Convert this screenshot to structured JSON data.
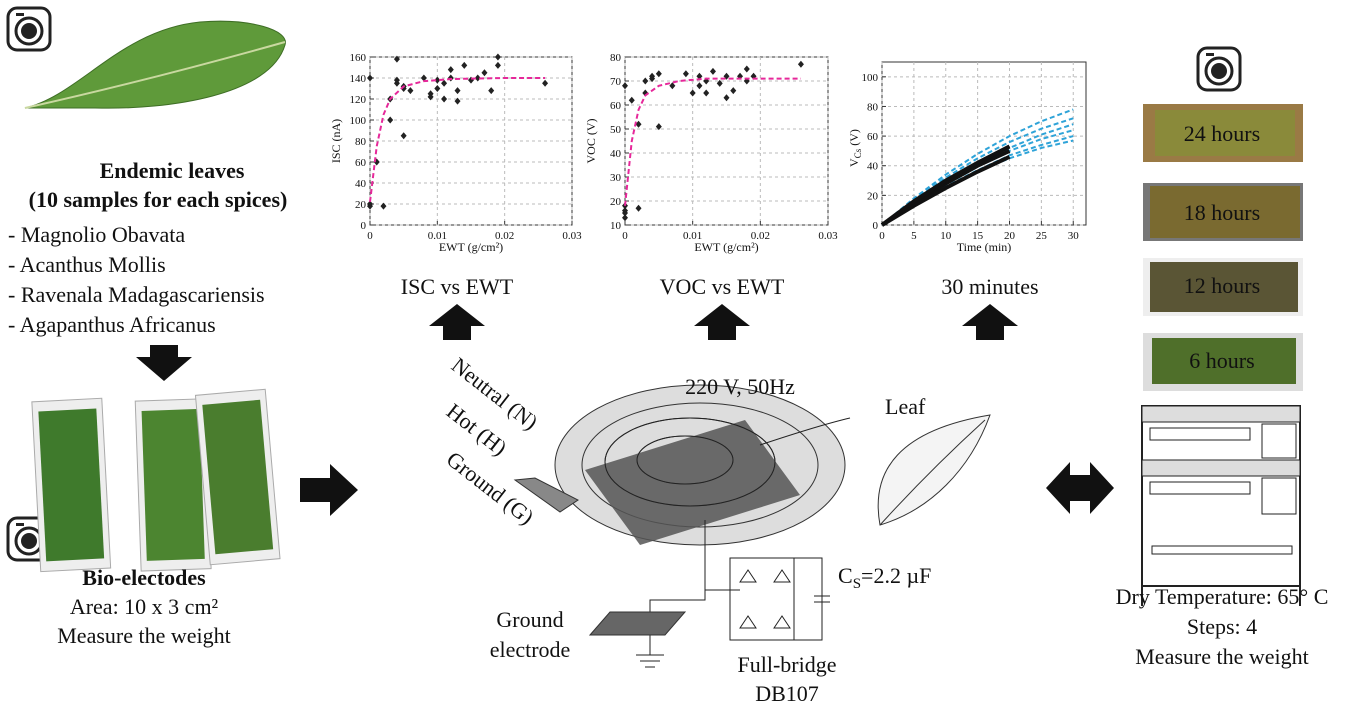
{
  "left": {
    "title": "Endemic leaves",
    "subtitle": "(10 samples for each spices)",
    "species": [
      "- Magnolio Obavata",
      "- Acanthus Mollis",
      "- Ravenala Madagascariensis",
      "- Agapanthus Africanus"
    ],
    "electrode_title": "Bio-electodes",
    "area": "Area: 10 x 3 cm²",
    "weight": "Measure the weight"
  },
  "center": {
    "captions": [
      "ISC vs EWT",
      "VOC vs EWT",
      "30 minutes"
    ],
    "supply": "220 V, 50Hz",
    "neutral": "Neutral (N)",
    "hot": "Hot (H)",
    "ground": "Ground (G)",
    "leaf": "Leaf",
    "ground_electrode": [
      "Ground",
      "electrode"
    ],
    "bridge": [
      "Full-bridge",
      "DB107"
    ],
    "capacitor": {
      "main": "C",
      "sub": "S",
      "rest": "=2.2 µF"
    }
  },
  "right": {
    "photos": [
      "24 hours",
      "18 hours",
      "12 hours",
      "6 hours"
    ],
    "temperature": "Dry Temperature: 65° C",
    "steps": "Steps: 4",
    "weight": "Measure the weight"
  },
  "chart_data": [
    {
      "type": "scatter",
      "xlabel": "EWT (g/cm²)",
      "ylabel": "ISC (nA)",
      "xlim": [
        0,
        0.03
      ],
      "xticks": [
        0,
        0.01,
        0.02,
        0.03
      ],
      "ylim": [
        0,
        160
      ],
      "yticks": [
        0,
        20,
        40,
        60,
        80,
        100,
        120,
        140,
        160
      ],
      "grid": true,
      "series": [
        {
          "style": "scatter",
          "color": "#222222",
          "x": [
            0,
            0,
            0,
            0.001,
            0.002,
            0.003,
            0.003,
            0.004,
            0.004,
            0.004,
            0.005,
            0.005,
            0.005,
            0.006,
            0.008,
            0.009,
            0.009,
            0.01,
            0.01,
            0.011,
            0.011,
            0.012,
            0.012,
            0.013,
            0.013,
            0.014,
            0.015,
            0.016,
            0.017,
            0.018,
            0.019,
            0.019,
            0.026
          ],
          "values": [
            140,
            20,
            18,
            60,
            18,
            100,
            120,
            158,
            135,
            138,
            130,
            132,
            85,
            128,
            140,
            125,
            122,
            130,
            138,
            120,
            135,
            140,
            148,
            118,
            128,
            152,
            138,
            140,
            145,
            128,
            160,
            152,
            135
          ]
        },
        {
          "style": "line",
          "dash": true,
          "color": "#e6289a",
          "x": [
            0,
            0.001,
            0.002,
            0.003,
            0.005,
            0.008,
            0.012,
            0.02,
            0.026
          ],
          "values": [
            22,
            75,
            105,
            120,
            132,
            137,
            139,
            140,
            140
          ]
        }
      ]
    },
    {
      "type": "scatter",
      "xlabel": "EWT (g/cm²)",
      "ylabel": "VOC (V)",
      "xlim": [
        0,
        0.03
      ],
      "xticks": [
        0,
        0.01,
        0.02,
        0.03
      ],
      "ylim": [
        10,
        80
      ],
      "yticks": [
        10,
        20,
        30,
        40,
        50,
        60,
        70,
        80
      ],
      "grid": true,
      "series": [
        {
          "style": "scatter",
          "color": "#222222",
          "x": [
            0,
            0,
            0,
            0,
            0,
            0.001,
            0.002,
            0.002,
            0.003,
            0.003,
            0.004,
            0.004,
            0.005,
            0.005,
            0.007,
            0.009,
            0.01,
            0.011,
            0.011,
            0.012,
            0.012,
            0.013,
            0.014,
            0.015,
            0.015,
            0.016,
            0.017,
            0.018,
            0.018,
            0.019,
            0.026
          ],
          "values": [
            68,
            15,
            13,
            16,
            18,
            62,
            52,
            17,
            70,
            65,
            71,
            72,
            73,
            51,
            68,
            73,
            65,
            72,
            68,
            65,
            70,
            74,
            69,
            63,
            72,
            66,
            72,
            70,
            75,
            72,
            77
          ]
        },
        {
          "style": "line",
          "dash": true,
          "color": "#e6289a",
          "x": [
            0,
            0.001,
            0.002,
            0.003,
            0.005,
            0.008,
            0.012,
            0.02,
            0.026
          ],
          "values": [
            18,
            45,
            58,
            64,
            68,
            70,
            71,
            71,
            71
          ]
        }
      ]
    },
    {
      "type": "line",
      "xlabel": "Time (min)",
      "ylabel": {
        "main": "V",
        "sub": "Cs",
        "unit": " (V)"
      },
      "xlim": [
        0,
        32
      ],
      "xticks": [
        0,
        5,
        10,
        15,
        20,
        25,
        30
      ],
      "ylim": [
        0,
        110
      ],
      "yticks": [
        0,
        20,
        40,
        60,
        80,
        100
      ],
      "grid": true,
      "series": [
        {
          "style": "line",
          "dash": true,
          "color": "#2ea3d8",
          "x": [
            0,
            5,
            10,
            15,
            20,
            25,
            30
          ],
          "values": [
            0,
            18,
            34,
            48,
            60,
            70,
            78
          ]
        },
        {
          "style": "line",
          "dash": true,
          "color": "#2ea3d8",
          "x": [
            0,
            5,
            10,
            15,
            20,
            25,
            30
          ],
          "values": [
            0,
            17,
            32,
            45,
            56,
            65,
            72
          ]
        },
        {
          "style": "line",
          "dash": true,
          "color": "#2ea3d8",
          "x": [
            0,
            5,
            10,
            15,
            20,
            25,
            30
          ],
          "values": [
            0,
            16,
            30,
            42,
            52,
            61,
            68
          ]
        },
        {
          "style": "line",
          "dash": true,
          "color": "#2ea3d8",
          "x": [
            0,
            5,
            10,
            15,
            20,
            25,
            30
          ],
          "values": [
            0,
            15,
            28,
            40,
            50,
            58,
            64
          ]
        },
        {
          "style": "line",
          "dash": true,
          "color": "#2ea3d8",
          "x": [
            0,
            5,
            10,
            15,
            20,
            25,
            30
          ],
          "values": [
            0,
            14,
            26,
            37,
            47,
            54,
            60
          ]
        },
        {
          "style": "line",
          "dash": true,
          "color": "#2ea3d8",
          "x": [
            0,
            5,
            10,
            15,
            20,
            25,
            30
          ],
          "values": [
            0,
            14,
            26,
            36,
            45,
            52,
            57
          ]
        },
        {
          "style": "line",
          "color": "#111111",
          "width": 4,
          "x": [
            0,
            5,
            10,
            15,
            20
          ],
          "values": [
            0,
            15,
            28,
            40,
            50
          ]
        },
        {
          "style": "line",
          "color": "#111111",
          "width": 4,
          "x": [
            0,
            5,
            10,
            15,
            20
          ],
          "values": [
            0,
            13,
            25,
            36,
            46
          ]
        },
        {
          "style": "line",
          "color": "#111111",
          "width": 4,
          "x": [
            0,
            5,
            10,
            15,
            20
          ],
          "values": [
            0,
            16,
            30,
            42,
            53
          ]
        }
      ]
    }
  ]
}
